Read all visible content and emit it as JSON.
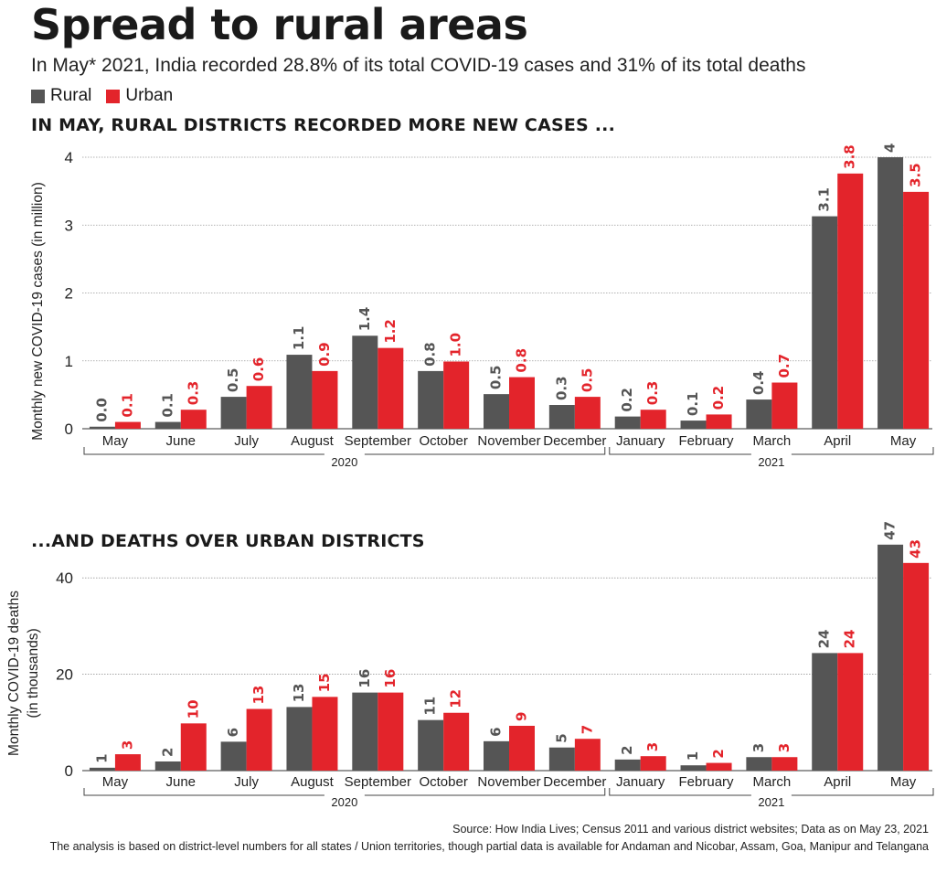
{
  "title": "Spread to rural areas",
  "subtitle": "In May* 2021, India recorded 28.8% of its total COVID-19 cases and 31% of its total deaths",
  "legend": {
    "rural": "Rural",
    "urban": "Urban"
  },
  "colors": {
    "rural": "#555555",
    "urban": "#e3242b"
  },
  "source": "Source: How India Lives; Census 2011 and various district websites; Data as on May 23, 2021",
  "note": "The analysis is based on district-level numbers for all states / Union territories, though partial data is available for Andaman and Nicobar, Assam, Goa, Manipur and Telangana",
  "chart_data": [
    {
      "type": "bar",
      "title": "IN MAY, RURAL DISTRICTS RECORDED MORE NEW CASES ...",
      "ylabel": "Monthly new COVID-19 cases (in million)",
      "ylim": [
        0,
        4
      ],
      "yticks": [
        0,
        1,
        2,
        3,
        4
      ],
      "grid": true,
      "categories": [
        "May",
        "June",
        "July",
        "August",
        "September",
        "October",
        "November",
        "December",
        "January",
        "February",
        "March",
        "April",
        "May"
      ],
      "year_groups": [
        {
          "label": "2020",
          "from": 0,
          "to": 7
        },
        {
          "label": "2021",
          "from": 8,
          "to": 12
        }
      ],
      "series": [
        {
          "name": "Rural",
          "values": [
            0.03,
            0.1,
            0.47,
            1.09,
            1.37,
            0.85,
            0.51,
            0.35,
            0.18,
            0.12,
            0.43,
            3.13,
            4.0
          ],
          "labels": [
            "0.0",
            "0.1",
            "0.5",
            "1.1",
            "1.4",
            "0.8",
            "0.5",
            "0.3",
            "0.2",
            "0.1",
            "0.4",
            "3.1",
            "4"
          ]
        },
        {
          "name": "Urban",
          "values": [
            0.1,
            0.28,
            0.63,
            0.85,
            1.19,
            0.99,
            0.76,
            0.47,
            0.28,
            0.21,
            0.68,
            3.76,
            3.49
          ],
          "labels": [
            "0.1",
            "0.3",
            "0.6",
            "0.9",
            "1.2",
            "1.0",
            "0.8",
            "0.5",
            "0.3",
            "0.2",
            "0.7",
            "3.8",
            "3.5"
          ]
        }
      ]
    },
    {
      "type": "bar",
      "title": "...AND DEATHS OVER URBAN DISTRICTS",
      "ylabel": [
        "Monthly COVID-19 deaths",
        "(in thousands)"
      ],
      "ylim": [
        0,
        48
      ],
      "yticks": [
        0,
        20,
        40
      ],
      "grid": true,
      "categories": [
        "May",
        "June",
        "July",
        "August",
        "September",
        "October",
        "November",
        "December",
        "January",
        "February",
        "March",
        "April",
        "May"
      ],
      "year_groups": [
        {
          "label": "2020",
          "from": 0,
          "to": 7
        },
        {
          "label": "2021",
          "from": 8,
          "to": 12
        }
      ],
      "series": [
        {
          "name": "Rural",
          "values": [
            0.6,
            1.9,
            6.0,
            13.2,
            16.2,
            10.5,
            6.1,
            4.8,
            2.3,
            1.1,
            2.8,
            24.4,
            46.9
          ],
          "labels": [
            "1",
            "2",
            "6",
            "13",
            "16",
            "11",
            "6",
            "5",
            "2",
            "1",
            "3",
            "24",
            "47"
          ]
        },
        {
          "name": "Urban",
          "values": [
            3.4,
            9.8,
            12.8,
            15.3,
            16.2,
            12.0,
            9.3,
            6.6,
            3.0,
            1.6,
            2.8,
            24.4,
            43.1
          ],
          "labels": [
            "3",
            "10",
            "13",
            "15",
            "16",
            "12",
            "9",
            "7",
            "3",
            "2",
            "3",
            "24",
            "43"
          ]
        }
      ]
    }
  ]
}
